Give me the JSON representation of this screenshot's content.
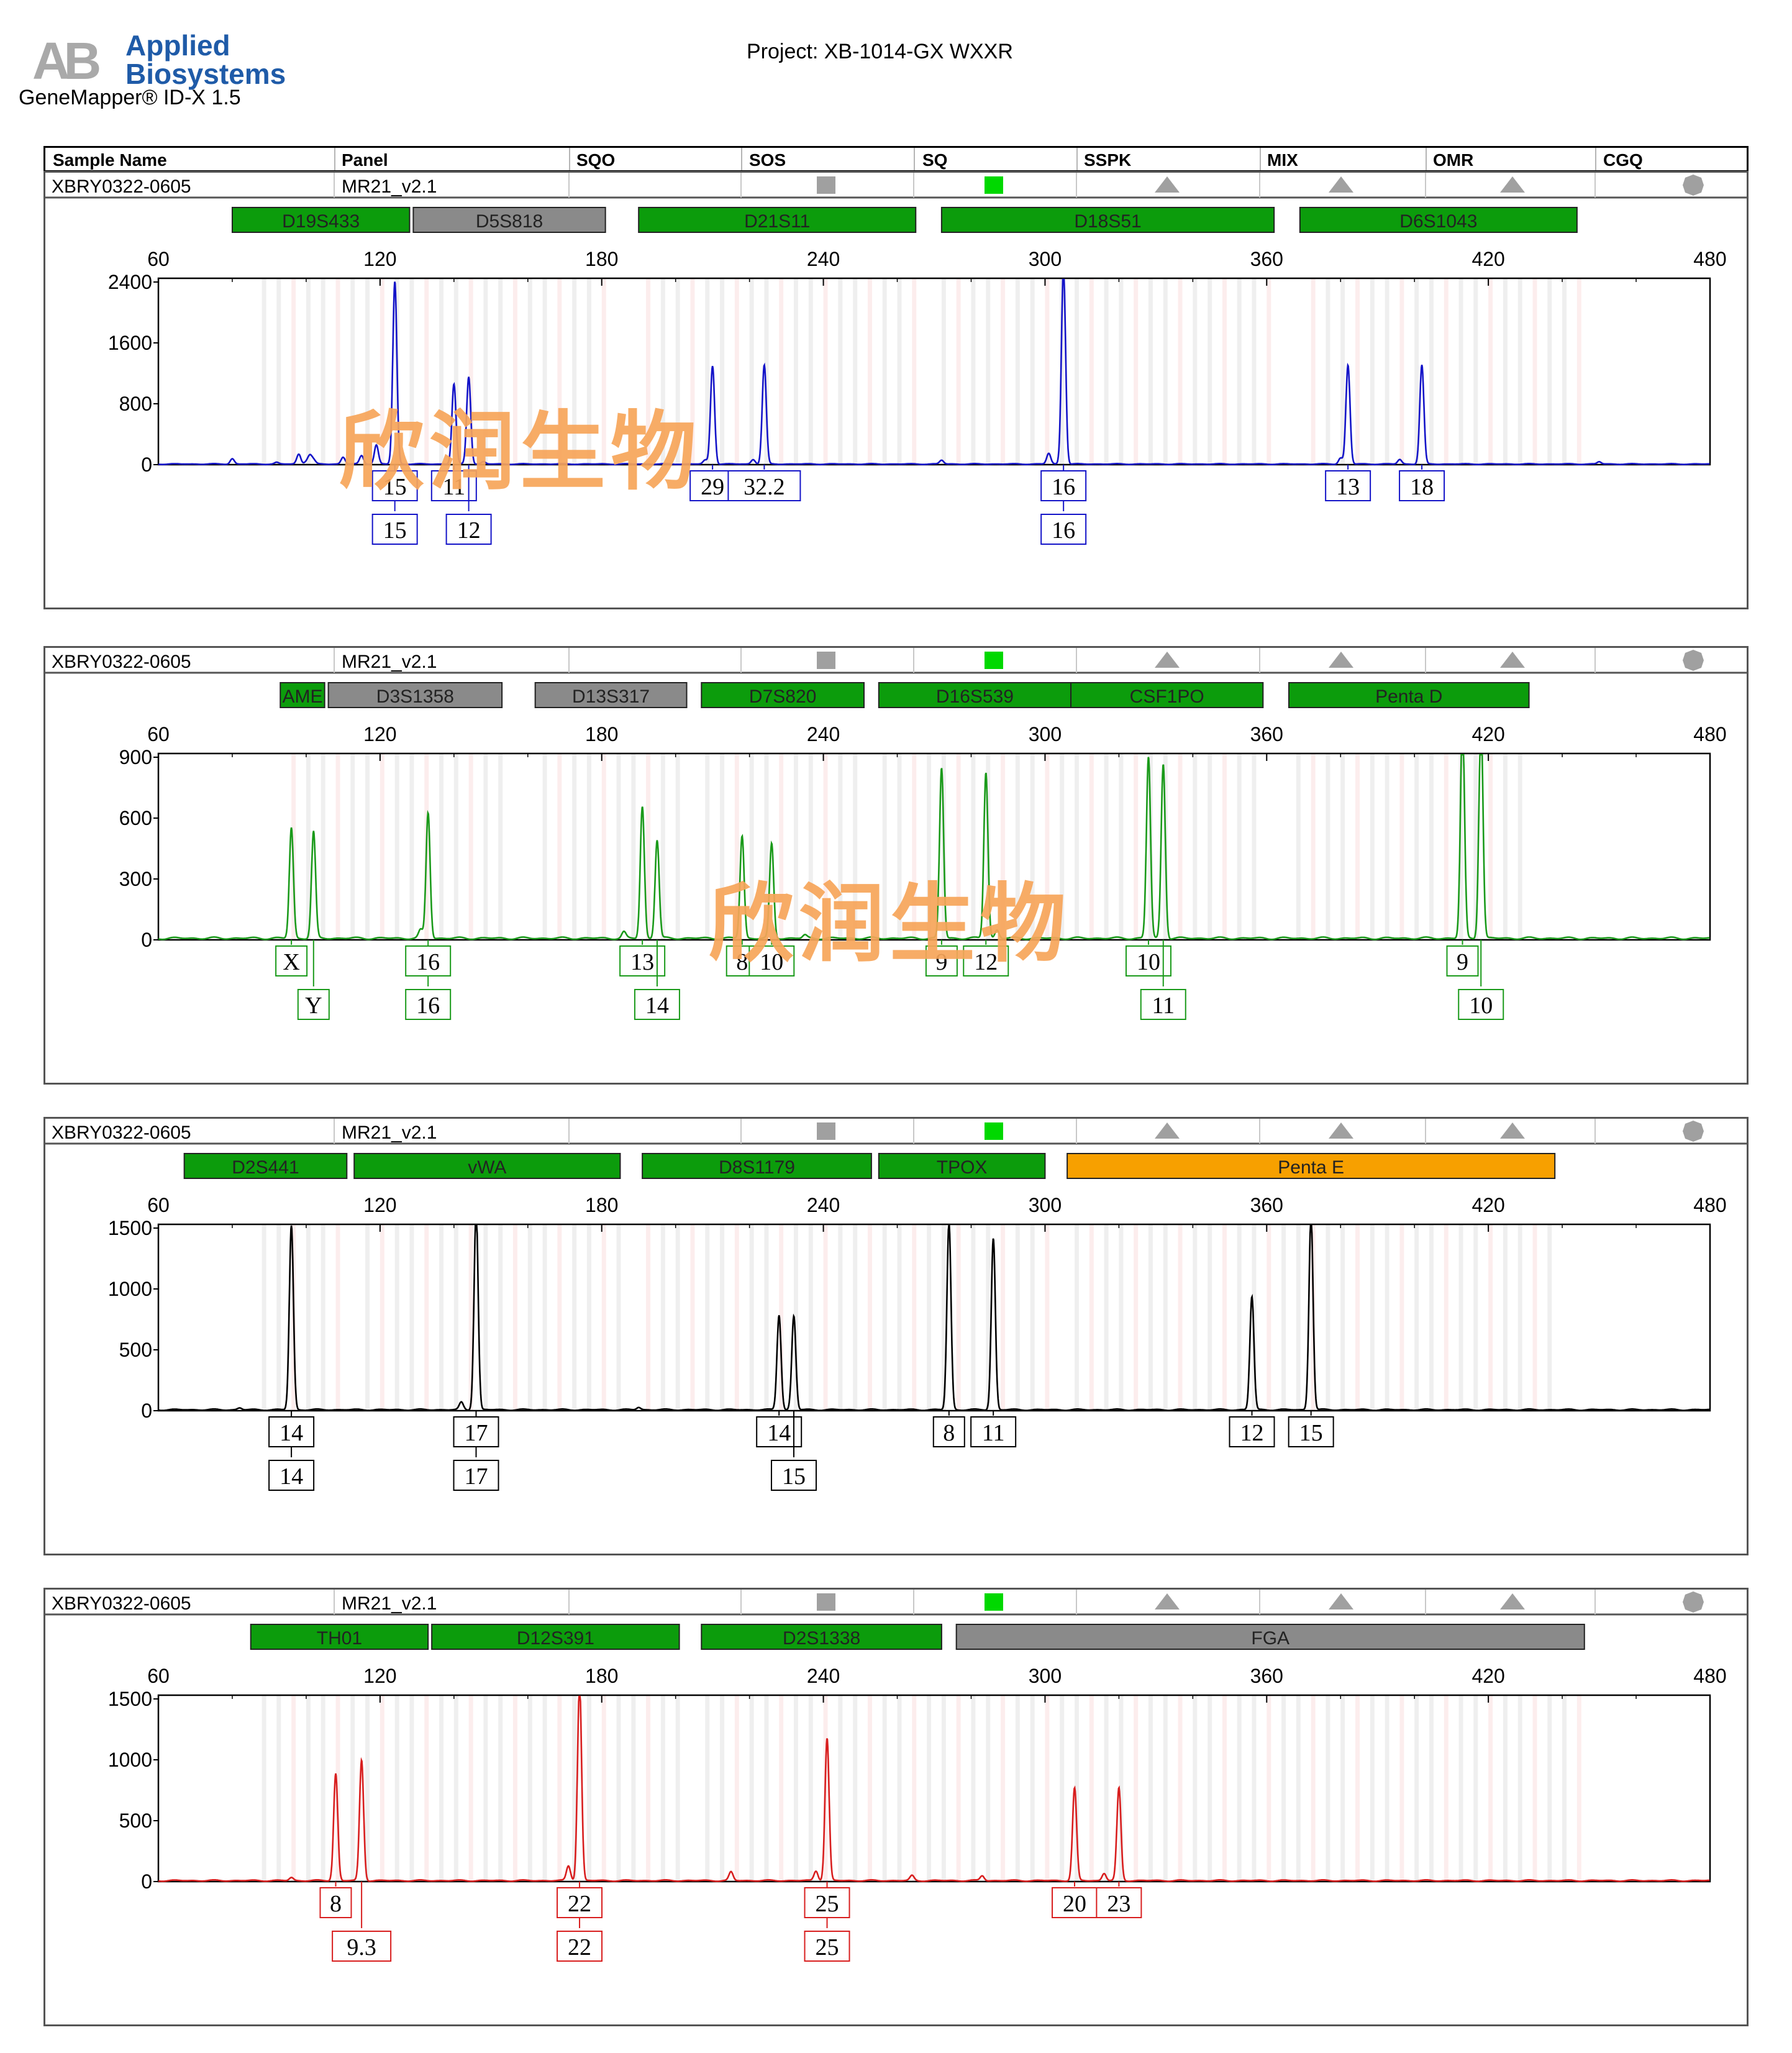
{
  "header": {
    "logo_letters": "AB",
    "brand_line1": "Applied",
    "brand_line2": "Biosystems",
    "product": "GeneMapper® ID-X  1.5",
    "project": "Project: XB-1014-GX WXXR"
  },
  "columns": [
    "Sample Name",
    "Panel",
    "SQO",
    "SOS",
    "SQ",
    "SSPK",
    "MIX",
    "OMR",
    "CGQ"
  ],
  "watermark": "欣润生物",
  "colors": {
    "blue": "#1414c8",
    "green": "#1a9a1a",
    "black": "#000000",
    "red": "#d81e1e",
    "marker_green": "#0c9c0c",
    "marker_grey": "#8a8a8a",
    "marker_orange": "#f7a000",
    "flag_grey": "#a0a0a0",
    "flag_green": "#00d800"
  },
  "chart_data": [
    {
      "type": "line",
      "dye": "blue",
      "sample": "XBRY0322-0605",
      "panel": "MR21_v2.1",
      "xlim": [
        60,
        480
      ],
      "x_ticks": [
        60,
        120,
        180,
        240,
        300,
        360,
        420,
        480
      ],
      "ylim": [
        0,
        2400
      ],
      "y_ticks": [
        0,
        800,
        1600,
        2400
      ],
      "markers": [
        {
          "name": "D19S433",
          "from": 80,
          "to": 128,
          "color": "green"
        },
        {
          "name": "D5S818",
          "from": 129,
          "to": 181,
          "color": "grey"
        },
        {
          "name": "D21S11",
          "from": 190,
          "to": 265,
          "color": "green"
        },
        {
          "name": "D18S51",
          "from": 272,
          "to": 362,
          "color": "green"
        },
        {
          "name": "D6S1043",
          "from": 369,
          "to": 444,
          "color": "green"
        }
      ],
      "peaks": [
        [
          80,
          70
        ],
        [
          92,
          20
        ],
        [
          98,
          130
        ],
        [
          102,
          50
        ],
        [
          100,
          30
        ],
        [
          124,
          2400
        ],
        [
          119,
          250
        ],
        [
          115,
          110
        ],
        [
          110,
          90
        ],
        [
          101,
          110
        ],
        [
          140,
          1050
        ],
        [
          144,
          1150
        ],
        [
          148,
          30
        ],
        [
          208,
          50
        ],
        [
          210,
          1290
        ],
        [
          221,
          60
        ],
        [
          224,
          1300
        ],
        [
          272,
          50
        ],
        [
          301,
          140
        ],
        [
          305,
          2600
        ],
        [
          380,
          80
        ],
        [
          382,
          1300
        ],
        [
          396,
          60
        ],
        [
          402,
          1300
        ],
        [
          450,
          30
        ]
      ],
      "alleles": [
        {
          "x": 124,
          "row1": "15",
          "row2": "15"
        },
        {
          "x": 140,
          "row1": "11",
          "row2": null
        },
        {
          "x": 144,
          "row1": null,
          "row2": "12"
        },
        {
          "x": 210,
          "row1": "29",
          "row2": null
        },
        {
          "x": 224,
          "row1": "32.2",
          "row2": null
        },
        {
          "x": 305,
          "row1": "16",
          "row2": "16"
        },
        {
          "x": 382,
          "row1": "13",
          "row2": null
        },
        {
          "x": 402,
          "row1": "18",
          "row2": null
        }
      ]
    },
    {
      "type": "line",
      "dye": "green",
      "sample": "XBRY0322-0605",
      "panel": "MR21_v2.1",
      "xlim": [
        60,
        480
      ],
      "x_ticks": [
        60,
        120,
        180,
        240,
        300,
        360,
        420,
        480
      ],
      "ylim": [
        0,
        900
      ],
      "y_ticks": [
        0,
        300,
        600,
        900
      ],
      "markers": [
        {
          "name": "AME",
          "from": 93,
          "to": 105,
          "color": "green"
        },
        {
          "name": "D3S1358",
          "from": 106,
          "to": 153,
          "color": "grey"
        },
        {
          "name": "D13S317",
          "from": 162,
          "to": 203,
          "color": "grey"
        },
        {
          "name": "D7S820",
          "from": 207,
          "to": 251,
          "color": "green"
        },
        {
          "name": "D16S539",
          "from": 255,
          "to": 307,
          "color": "green"
        },
        {
          "name": "CSF1PO",
          "from": 307,
          "to": 359,
          "color": "green"
        },
        {
          "name": "Penta D",
          "from": 366,
          "to": 431,
          "color": "green"
        }
      ],
      "peaks": [
        [
          96,
          545
        ],
        [
          102,
          525
        ],
        [
          133,
          620
        ],
        [
          131,
          40
        ],
        [
          191,
          650
        ],
        [
          195,
          485
        ],
        [
          186,
          30
        ],
        [
          218,
          505
        ],
        [
          226,
          465
        ],
        [
          272,
          840
        ],
        [
          284,
          820
        ],
        [
          287,
          40
        ],
        [
          328,
          895
        ],
        [
          332,
          860
        ],
        [
          413,
          1080
        ],
        [
          418,
          1080
        ],
        [
          235,
          15
        ]
      ],
      "alleles": [
        {
          "x": 96,
          "row1": "X",
          "row2": null
        },
        {
          "x": 102,
          "row1": null,
          "row2": "Y"
        },
        {
          "x": 133,
          "row1": "16",
          "row2": "16"
        },
        {
          "x": 191,
          "row1": "13",
          "row2": null
        },
        {
          "x": 195,
          "row1": null,
          "row2": "14"
        },
        {
          "x": 218,
          "row1": "8",
          "row2": null
        },
        {
          "x": 226,
          "row1": "10",
          "row2": null
        },
        {
          "x": 272,
          "row1": "9",
          "row2": null
        },
        {
          "x": 284,
          "row1": "12",
          "row2": null
        },
        {
          "x": 328,
          "row1": "10",
          "row2": null
        },
        {
          "x": 332,
          "row1": null,
          "row2": "11"
        },
        {
          "x": 413,
          "row1": "9",
          "row2": null
        },
        {
          "x": 418,
          "row1": null,
          "row2": "10"
        }
      ]
    },
    {
      "type": "line",
      "dye": "black",
      "sample": "XBRY0322-0605",
      "panel": "MR21_v2.1",
      "xlim": [
        60,
        480
      ],
      "x_ticks": [
        60,
        120,
        180,
        240,
        300,
        360,
        420,
        480
      ],
      "ylim": [
        0,
        1500
      ],
      "y_ticks": [
        0,
        500,
        1000,
        1500
      ],
      "markers": [
        {
          "name": "D2S441",
          "from": 67,
          "to": 111,
          "color": "green"
        },
        {
          "name": "vWA",
          "from": 113,
          "to": 185,
          "color": "green"
        },
        {
          "name": "D8S1179",
          "from": 191,
          "to": 253,
          "color": "green"
        },
        {
          "name": "TPOX",
          "from": 255,
          "to": 300,
          "color": "green"
        },
        {
          "name": "Penta E",
          "from": 306,
          "to": 438,
          "color": "orange"
        }
      ],
      "peaks": [
        [
          96,
          1520
        ],
        [
          146,
          1650
        ],
        [
          142,
          60
        ],
        [
          228,
          780
        ],
        [
          232,
          770
        ],
        [
          274,
          1540
        ],
        [
          286,
          1410
        ],
        [
          356,
          930
        ],
        [
          372,
          1600
        ],
        [
          82,
          15
        ],
        [
          190,
          20
        ]
      ],
      "alleles": [
        {
          "x": 96,
          "row1": "14",
          "row2": "14"
        },
        {
          "x": 146,
          "row1": "17",
          "row2": "17"
        },
        {
          "x": 228,
          "row1": "14",
          "row2": null
        },
        {
          "x": 232,
          "row1": null,
          "row2": "15"
        },
        {
          "x": 274,
          "row1": "8",
          "row2": null
        },
        {
          "x": 286,
          "row1": "11",
          "row2": null
        },
        {
          "x": 356,
          "row1": "12",
          "row2": null
        },
        {
          "x": 372,
          "row1": "15",
          "row2": null
        }
      ]
    },
    {
      "type": "line",
      "dye": "red",
      "sample": "XBRY0322-0605",
      "panel": "MR21_v2.1",
      "xlim": [
        60,
        480
      ],
      "x_ticks": [
        60,
        120,
        180,
        240,
        300,
        360,
        420,
        480
      ],
      "ylim": [
        0,
        1500
      ],
      "y_ticks": [
        0,
        500,
        1000,
        1500
      ],
      "markers": [
        {
          "name": "TH01",
          "from": 85,
          "to": 133,
          "color": "green"
        },
        {
          "name": "D12S391",
          "from": 134,
          "to": 201,
          "color": "green"
        },
        {
          "name": "D2S1338",
          "from": 207,
          "to": 272,
          "color": "green"
        },
        {
          "name": "FGA",
          "from": 276,
          "to": 446,
          "color": "grey"
        }
      ],
      "peaks": [
        [
          108,
          880
        ],
        [
          115,
          990
        ],
        [
          174,
          1620
        ],
        [
          171,
          120
        ],
        [
          241,
          1170
        ],
        [
          238,
          80
        ],
        [
          308,
          760
        ],
        [
          320,
          760
        ],
        [
          316,
          60
        ],
        [
          96,
          25
        ],
        [
          215,
          70
        ],
        [
          264,
          40
        ],
        [
          283,
          40
        ]
      ],
      "alleles": [
        {
          "x": 108,
          "row1": "8",
          "row2": null
        },
        {
          "x": 115,
          "row1": null,
          "row2": "9.3"
        },
        {
          "x": 174,
          "row1": "22",
          "row2": "22"
        },
        {
          "x": 241,
          "row1": "25",
          "row2": "25"
        },
        {
          "x": 308,
          "row1": "20",
          "row2": null
        },
        {
          "x": 320,
          "row1": "23",
          "row2": null
        }
      ]
    }
  ]
}
